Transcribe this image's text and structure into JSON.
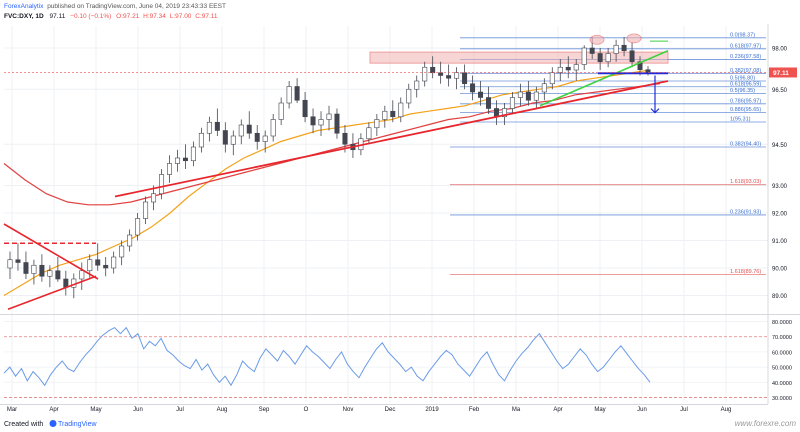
{
  "header": {
    "author": "ForexAnalytix",
    "published_on": "published on TradingView.com, June 04, 2019 23:43:33 EEST",
    "symbol": "FVC:DXY, 1D",
    "last": "97.11",
    "change": "−0.10 (−0.1%)",
    "ohlc": {
      "o_label": "O:",
      "o": "97.21",
      "h_label": "H:",
      "h": "97.34",
      "l_label": "L:",
      "l": "97.00",
      "c_label": "C:",
      "c": "97.11"
    }
  },
  "footer": {
    "created_with": "Created with",
    "tv_logo_text": "TradingView",
    "watermark": "www.forexre.com"
  },
  "colors": {
    "up": "#26a69a",
    "down": "#ef5350",
    "candle": "#434651",
    "ma_fast": "#f4a21a",
    "ma_slow": "#e04040",
    "trend_red": "#e8262d",
    "trend_green": "#3fd13f",
    "blue_line": "#1f2bd8",
    "fib_blue": "#3a6fd0",
    "fib_red": "#e05050",
    "rsi": "#6a9be8",
    "price_tag": "#ef5350",
    "zone": "#f3b4b4",
    "grid": "#eef0f4"
  },
  "chart_data": [
    {
      "type": "candlestick",
      "x_axis": {
        "tick_labels": [
          "Mar",
          "Apr",
          "May",
          "Jun",
          "Jul",
          "Aug",
          "Sep",
          "O",
          "Nov",
          "Dec",
          "2019",
          "Feb",
          "Ma",
          "Apr",
          "May",
          "Jun",
          "Jul",
          "Aug"
        ]
      },
      "y_axis": {
        "range": [
          88.4,
          98.8
        ],
        "tick_labels": [
          "98.00",
          "96.50",
          "94.50",
          "93.00",
          "92.00",
          "91.00",
          "90.00",
          "89.00"
        ],
        "tick_values": [
          98.0,
          96.5,
          94.5,
          93.0,
          92.0,
          91.0,
          90.0,
          89.0
        ]
      },
      "last_price": 97.11,
      "last_price_label": "97.11",
      "fib_levels": [
        {
          "label": "0.0(98.37)",
          "value": 98.37
        },
        {
          "label": "0.618(97.97)",
          "value": 97.97
        },
        {
          "label": "0.236(97.58)",
          "value": 97.58
        },
        {
          "label": "0.382(97.08)",
          "value": 97.08
        },
        {
          "label": "0.5(96.80)",
          "value": 96.8
        },
        {
          "label": "0.618(96.59)",
          "value": 96.59
        },
        {
          "label": "0.5(96.35)",
          "value": 96.35
        },
        {
          "label": "0.786(95.97)",
          "value": 95.97
        },
        {
          "label": "0.886(95.65)",
          "value": 95.65
        },
        {
          "label": "1(95.31)",
          "value": 95.31
        },
        {
          "label": "0.382(94.40)",
          "value": 94.4
        },
        {
          "label": "1.618(93.03)",
          "value": 93.03
        },
        {
          "label": "0.236(91.93)",
          "value": 91.93
        },
        {
          "label": "1.618(89.76)",
          "value": 89.76
        }
      ],
      "candles": [
        [
          90.0,
          90.6,
          89.6,
          90.3
        ],
        [
          90.3,
          90.9,
          89.9,
          90.2
        ],
        [
          90.2,
          90.6,
          89.6,
          89.8
        ],
        [
          89.8,
          90.3,
          89.4,
          90.1
        ],
        [
          90.1,
          90.5,
          89.5,
          89.7
        ],
        [
          89.7,
          90.1,
          89.3,
          89.9
        ],
        [
          89.9,
          90.4,
          89.5,
          89.6
        ],
        [
          89.6,
          89.9,
          89.0,
          89.3
        ],
        [
          89.3,
          89.8,
          88.9,
          89.6
        ],
        [
          89.6,
          90.2,
          89.2,
          89.9
        ],
        [
          89.9,
          90.5,
          89.6,
          90.3
        ],
        [
          90.3,
          90.9,
          89.9,
          90.1
        ],
        [
          90.1,
          90.4,
          89.7,
          90.0
        ],
        [
          90.0,
          90.6,
          89.8,
          90.4
        ],
        [
          90.4,
          91.0,
          90.1,
          90.8
        ],
        [
          90.8,
          91.4,
          90.6,
          91.2
        ],
        [
          91.2,
          92.0,
          91.0,
          91.8
        ],
        [
          91.8,
          92.6,
          91.6,
          92.4
        ],
        [
          92.4,
          93.0,
          92.1,
          92.7
        ],
        [
          92.7,
          93.6,
          92.5,
          93.4
        ],
        [
          93.4,
          94.1,
          93.1,
          93.8
        ],
        [
          93.8,
          94.3,
          93.5,
          94.0
        ],
        [
          94.0,
          94.5,
          93.6,
          93.9
        ],
        [
          93.9,
          94.6,
          93.7,
          94.4
        ],
        [
          94.4,
          95.1,
          94.2,
          94.9
        ],
        [
          94.9,
          95.5,
          94.6,
          95.3
        ],
        [
          95.3,
          95.8,
          94.8,
          95.0
        ],
        [
          95.0,
          95.3,
          94.2,
          94.5
        ],
        [
          94.5,
          95.0,
          94.1,
          94.8
        ],
        [
          94.8,
          95.4,
          94.5,
          95.2
        ],
        [
          95.2,
          95.7,
          94.7,
          94.9
        ],
        [
          94.9,
          95.2,
          94.3,
          94.6
        ],
        [
          94.6,
          95.0,
          94.2,
          94.8
        ],
        [
          94.8,
          95.6,
          94.6,
          95.4
        ],
        [
          95.4,
          96.2,
          95.2,
          96.0
        ],
        [
          96.0,
          96.8,
          95.8,
          96.6
        ],
        [
          96.6,
          96.9,
          96.0,
          96.1
        ],
        [
          96.1,
          96.4,
          95.3,
          95.5
        ],
        [
          95.5,
          95.8,
          94.9,
          95.2
        ],
        [
          95.2,
          95.7,
          94.8,
          95.4
        ],
        [
          95.4,
          95.9,
          95.0,
          95.6
        ],
        [
          95.6,
          95.8,
          94.7,
          94.9
        ],
        [
          94.9,
          95.2,
          94.2,
          94.5
        ],
        [
          94.5,
          94.9,
          94.0,
          94.3
        ],
        [
          94.3,
          94.9,
          94.1,
          94.7
        ],
        [
          94.7,
          95.3,
          94.5,
          95.1
        ],
        [
          95.1,
          95.6,
          94.8,
          95.4
        ],
        [
          95.4,
          95.9,
          95.1,
          95.7
        ],
        [
          95.7,
          96.1,
          95.3,
          95.5
        ],
        [
          95.5,
          96.2,
          95.3,
          96.0
        ],
        [
          96.0,
          96.7,
          95.8,
          96.5
        ],
        [
          96.5,
          97.0,
          96.2,
          96.8
        ],
        [
          96.8,
          97.5,
          96.6,
          97.3
        ],
        [
          97.3,
          97.7,
          96.9,
          97.1
        ],
        [
          97.1,
          97.5,
          96.7,
          97.0
        ],
        [
          97.0,
          97.4,
          96.6,
          96.9
        ],
        [
          96.9,
          97.3,
          96.5,
          97.1
        ],
        [
          97.1,
          97.4,
          96.5,
          96.7
        ],
        [
          96.7,
          97.0,
          96.1,
          96.4
        ],
        [
          96.4,
          96.8,
          95.9,
          96.2
        ],
        [
          96.2,
          96.6,
          95.6,
          95.8
        ],
        [
          95.8,
          96.1,
          95.2,
          95.5
        ],
        [
          95.5,
          96.0,
          95.2,
          95.8
        ],
        [
          95.8,
          96.4,
          95.6,
          96.2
        ],
        [
          96.2,
          96.7,
          95.9,
          96.4
        ],
        [
          96.4,
          96.8,
          95.9,
          96.1
        ],
        [
          96.1,
          96.6,
          95.8,
          96.4
        ],
        [
          96.4,
          96.9,
          96.1,
          96.7
        ],
        [
          96.7,
          97.3,
          96.5,
          97.1
        ],
        [
          97.1,
          97.6,
          96.8,
          97.3
        ],
        [
          97.3,
          97.7,
          96.9,
          97.2
        ],
        [
          97.2,
          97.6,
          96.8,
          97.4
        ],
        [
          97.4,
          98.1,
          97.2,
          98.0
        ],
        [
          98.0,
          98.4,
          97.6,
          97.8
        ],
        [
          97.8,
          98.0,
          97.2,
          97.5
        ],
        [
          97.5,
          98.0,
          97.3,
          97.8
        ],
        [
          97.8,
          98.3,
          97.5,
          98.1
        ],
        [
          98.1,
          98.4,
          97.7,
          97.9
        ],
        [
          97.9,
          98.2,
          97.3,
          97.5
        ],
        [
          97.5,
          97.7,
          97.0,
          97.21
        ],
        [
          97.21,
          97.34,
          97.0,
          97.11
        ]
      ],
      "moving_averages": [
        {
          "name": "MA fast",
          "values": [
            89.0,
            89.4,
            89.8,
            90.1,
            90.3,
            90.5,
            90.8,
            91.1,
            91.5,
            92.0,
            92.6,
            93.1,
            93.6,
            94.0,
            94.3,
            94.6,
            94.8,
            95.0,
            95.1,
            95.2,
            95.3,
            95.4,
            95.6,
            95.7,
            95.8,
            95.9,
            96.1,
            96.3,
            96.4,
            96.5,
            96.6,
            96.8,
            96.9,
            97.0,
            97.1,
            97.2
          ]
        },
        {
          "name": "MA slow",
          "values": [
            93.8,
            93.2,
            92.7,
            92.4,
            92.3,
            92.3,
            92.4,
            92.6,
            92.8,
            93.0,
            93.2,
            93.4,
            93.6,
            93.8,
            94.0,
            94.2,
            94.4,
            94.6,
            94.8,
            95.0,
            95.2,
            95.4,
            95.5,
            95.7,
            95.8,
            96.0,
            96.1,
            96.3,
            96.4,
            96.5,
            96.6,
            96.7
          ]
        }
      ],
      "annotations": {
        "zone_low": 97.45,
        "zone_high": 97.85,
        "target_arrow_to": 95.65
      }
    },
    {
      "type": "line",
      "name": "RSI",
      "y_axis": {
        "tick_labels": [
          "80.0000",
          "70.0000",
          "60.0000",
          "50.0000",
          "40.0000",
          "30.0000"
        ],
        "tick_values": [
          80,
          70,
          60,
          50,
          40,
          30
        ],
        "range": [
          27,
          83
        ],
        "overbought": 70,
        "oversold": 30
      },
      "values": [
        46,
        50,
        44,
        49,
        41,
        47,
        43,
        38,
        45,
        50,
        54,
        49,
        47,
        53,
        58,
        62,
        67,
        71,
        74,
        76,
        72,
        76,
        69,
        72,
        62,
        67,
        64,
        69,
        61,
        58,
        54,
        51,
        49,
        55,
        48,
        52,
        45,
        40,
        44,
        38,
        45,
        54,
        50,
        47,
        56,
        62,
        58,
        54,
        61,
        57,
        52,
        58,
        64,
        60,
        57,
        53,
        49,
        55,
        60,
        52,
        47,
        43,
        50,
        56,
        62,
        66,
        60,
        56,
        52,
        47,
        50,
        44,
        41,
        47,
        52,
        57,
        61,
        58,
        52,
        48,
        44,
        50,
        56,
        60,
        52,
        45,
        41,
        48,
        54,
        59,
        63,
        68,
        72,
        66,
        60,
        54,
        49,
        52,
        57,
        62,
        58,
        52,
        47,
        50,
        55,
        60,
        64,
        59,
        54,
        49,
        45,
        40
      ]
    }
  ]
}
